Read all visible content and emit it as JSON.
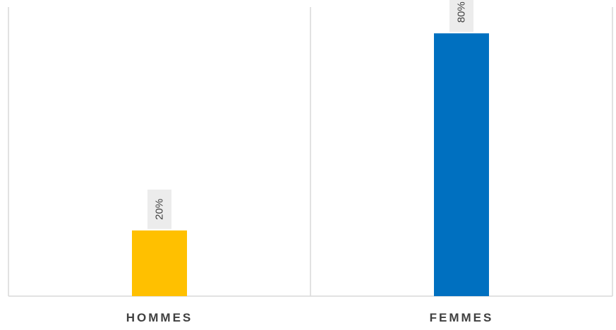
{
  "chart_data": {
    "type": "bar",
    "categories": [
      "HOMMES",
      "FEMMES"
    ],
    "values": [
      20,
      80
    ],
    "value_labels": [
      "20%",
      "80%"
    ],
    "unit": "%",
    "ylim": [
      0,
      88
    ],
    "colors": [
      "#FFC000",
      "#0070C0"
    ],
    "grid": false,
    "legend": "none"
  }
}
